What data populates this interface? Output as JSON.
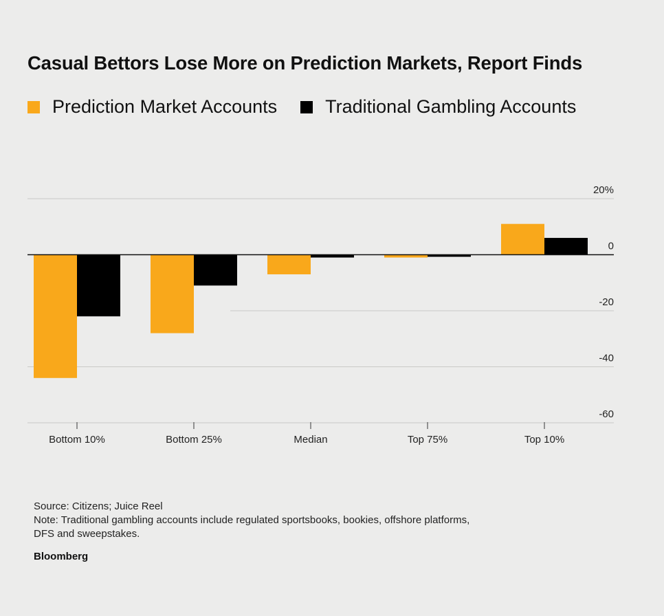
{
  "chart_data": {
    "type": "bar",
    "title": "Casual Bettors Lose More on Prediction Markets, Report Finds",
    "categories": [
      "Bottom 10%",
      "Bottom 25%",
      "Median",
      "Top 75%",
      "Top 10%"
    ],
    "series": [
      {
        "name": "Prediction Market Accounts",
        "color": "#f9a81b",
        "values": [
          -44,
          -28,
          -7,
          -1,
          11
        ]
      },
      {
        "name": "Traditional Gambling Accounts",
        "color": "#000000",
        "values": [
          -22,
          -11,
          -1,
          0,
          6
        ]
      }
    ],
    "y_ticks": [
      {
        "value": 20,
        "label": "20%"
      },
      {
        "value": 0,
        "label": "0"
      },
      {
        "value": -20,
        "label": "-20"
      },
      {
        "value": -40,
        "label": "-40"
      },
      {
        "value": -60,
        "label": "-60"
      }
    ],
    "ylim": [
      -60,
      20
    ],
    "xlabel": "",
    "ylabel": ""
  },
  "footer": {
    "source": "Source: Citizens; Juice Reel",
    "note_line1": "Note: Traditional gambling accounts include regulated sportsbooks, bookies, offshore platforms,",
    "note_line2": "DFS and sweepstakes.",
    "brand": "Bloomberg"
  }
}
